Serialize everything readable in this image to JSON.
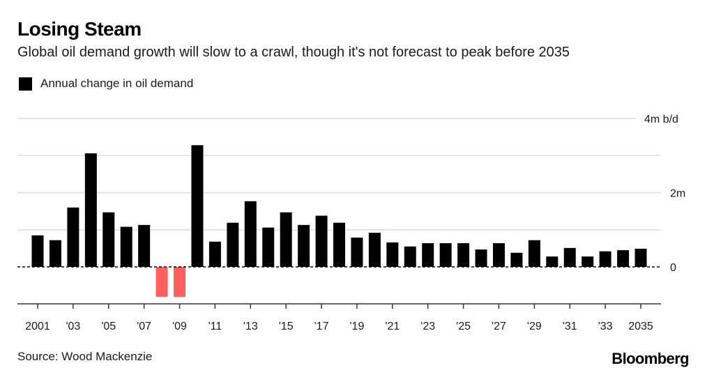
{
  "header": {
    "title": "Losing Steam",
    "subtitle": "Global oil demand growth will slow to a crawl, though it's not forecast to peak before 2035"
  },
  "legend": {
    "label": "Annual change in oil demand",
    "color": "#000000"
  },
  "footer": {
    "source": "Source: Wood Mackenzie",
    "brand": "Bloomberg"
  },
  "colors": {
    "positive": "#000000",
    "negative": "#ff5f5f",
    "gridline": "#dddddd",
    "axis": "#333333"
  },
  "chart_data": {
    "type": "bar",
    "title": "Losing Steam",
    "subtitle": "Global oil demand growth will slow to a crawl, though it's not forecast to peak before 2035",
    "xlabel": "",
    "ylabel": "m b/d",
    "ylim": [
      -1,
      4
    ],
    "grid": true,
    "legend": "top-left",
    "y_axis_side": "right",
    "y_ticks": [
      0,
      1,
      2,
      3,
      4
    ],
    "y_tick_labels": [
      {
        "value": 0,
        "label": "0"
      },
      {
        "value": 2,
        "label": "2m"
      },
      {
        "value": 4,
        "label": "4m b/d"
      }
    ],
    "x_tick_labels": [
      {
        "year": 2001,
        "label": "2001"
      },
      {
        "year": 2003,
        "label": "'03"
      },
      {
        "year": 2005,
        "label": "'05"
      },
      {
        "year": 2007,
        "label": "'07"
      },
      {
        "year": 2009,
        "label": "'09"
      },
      {
        "year": 2011,
        "label": "'11"
      },
      {
        "year": 2013,
        "label": "'13"
      },
      {
        "year": 2015,
        "label": "'15"
      },
      {
        "year": 2017,
        "label": "'17"
      },
      {
        "year": 2019,
        "label": "'19"
      },
      {
        "year": 2021,
        "label": "'21"
      },
      {
        "year": 2023,
        "label": "'23"
      },
      {
        "year": 2025,
        "label": "'25"
      },
      {
        "year": 2027,
        "label": "'27"
      },
      {
        "year": 2029,
        "label": "'29"
      },
      {
        "year": 2031,
        "label": "'31"
      },
      {
        "year": 2033,
        "label": "'33"
      },
      {
        "year": 2035,
        "label": "2035"
      }
    ],
    "categories": [
      2001,
      2002,
      2003,
      2004,
      2005,
      2006,
      2007,
      2008,
      2009,
      2010,
      2011,
      2012,
      2013,
      2014,
      2015,
      2016,
      2017,
      2018,
      2019,
      2020,
      2021,
      2022,
      2023,
      2024,
      2025,
      2026,
      2027,
      2028,
      2029,
      2030,
      2031,
      2032,
      2033,
      2034,
      2035
    ],
    "series": [
      {
        "name": "Annual change in oil demand",
        "unit": "million barrels per day",
        "values": [
          0.85,
          0.72,
          1.6,
          3.06,
          1.47,
          1.08,
          1.13,
          -0.81,
          -0.81,
          3.28,
          0.68,
          1.19,
          1.77,
          1.06,
          1.47,
          1.13,
          1.38,
          1.19,
          0.79,
          0.92,
          0.66,
          0.55,
          0.64,
          0.64,
          0.64,
          0.47,
          0.64,
          0.38,
          0.72,
          0.28,
          0.51,
          0.28,
          0.42,
          0.45,
          0.49
        ]
      }
    ]
  }
}
